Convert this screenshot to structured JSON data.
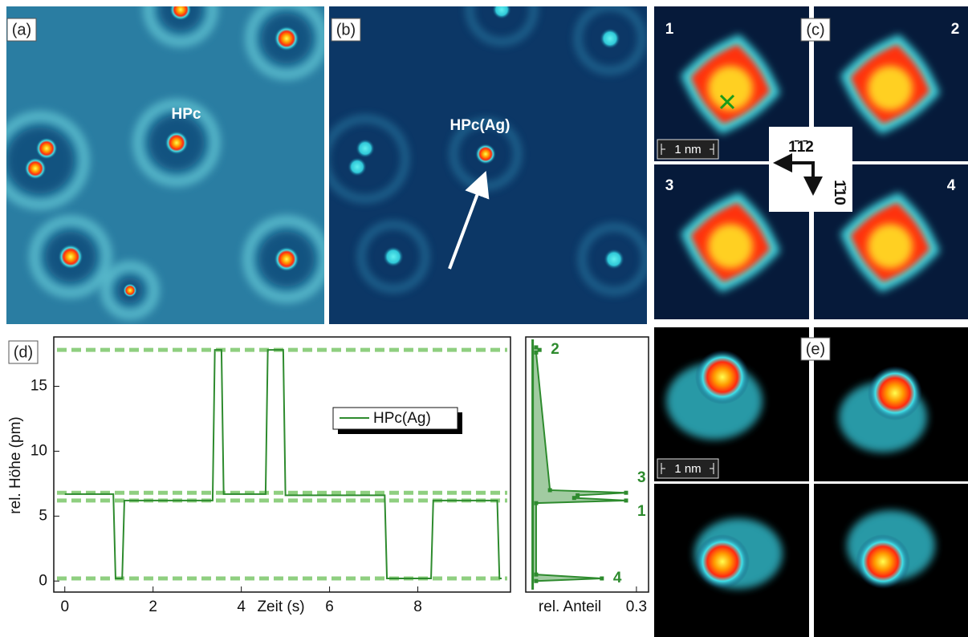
{
  "panels": {
    "a": {
      "label": "(a)",
      "molecule": "HPc"
    },
    "b": {
      "label": "(b)",
      "molecule": "HPc(Ag)"
    },
    "c": {
      "label": "(c)",
      "states": [
        "1",
        "2",
        "3",
        "4"
      ],
      "scale": "1 nm",
      "directions": [
        "1̄1̄2",
        "1̄10"
      ]
    },
    "e": {
      "label": "(e)",
      "scale": "1 nm"
    }
  },
  "chart_data": [
    {
      "type": "line",
      "label": "(d)",
      "xlabel": "Zeit (s)",
      "ylabel": "rel. Höhe (pm)",
      "x": [
        0,
        1.1,
        1.15,
        1.3,
        1.35,
        3.35,
        3.4,
        3.55,
        3.6,
        4.55,
        4.6,
        4.95,
        5.0,
        7.25,
        7.3,
        8.3,
        8.35,
        9.8,
        9.85,
        9.9
      ],
      "series": [
        {
          "name": "HPc(Ag)",
          "color": "#2e8b2e",
          "values": [
            6.7,
            6.7,
            0.2,
            0.2,
            6.2,
            6.2,
            17.8,
            17.8,
            6.7,
            6.7,
            17.8,
            17.8,
            6.6,
            6.6,
            0.2,
            0.2,
            6.2,
            6.2,
            0.2,
            0.2
          ]
        }
      ],
      "xlim": [
        -0.25,
        10.1
      ],
      "ylim": [
        -0.85,
        18.8
      ],
      "xticks": [
        0,
        2,
        4,
        6,
        8
      ],
      "yticks": [
        0,
        5,
        10,
        15
      ],
      "levels": [
        17.8,
        6.8,
        6.2,
        0.2
      ],
      "level_color": "#8fcf80",
      "legend": "upper right"
    },
    {
      "type": "distribution",
      "xlabel": "rel. Anteil",
      "color": "#2e8b2e",
      "y": [
        0,
        0.2,
        0.5,
        6.0,
        6.2,
        6.4,
        6.6,
        6.8,
        7.0,
        17.6,
        17.8,
        18.0
      ],
      "x": [
        0.01,
        0.2,
        0.01,
        0.01,
        0.27,
        0.12,
        0.13,
        0.27,
        0.05,
        0.01,
        0.02,
        0.01
      ],
      "point_labels": [
        null,
        "4",
        null,
        null,
        "1",
        null,
        null,
        "3",
        null,
        null,
        "2",
        null
      ],
      "xlim": [
        -0.02,
        0.335
      ],
      "ylim": [
        -0.85,
        18.8
      ],
      "xticks": [
        0.3
      ]
    }
  ]
}
